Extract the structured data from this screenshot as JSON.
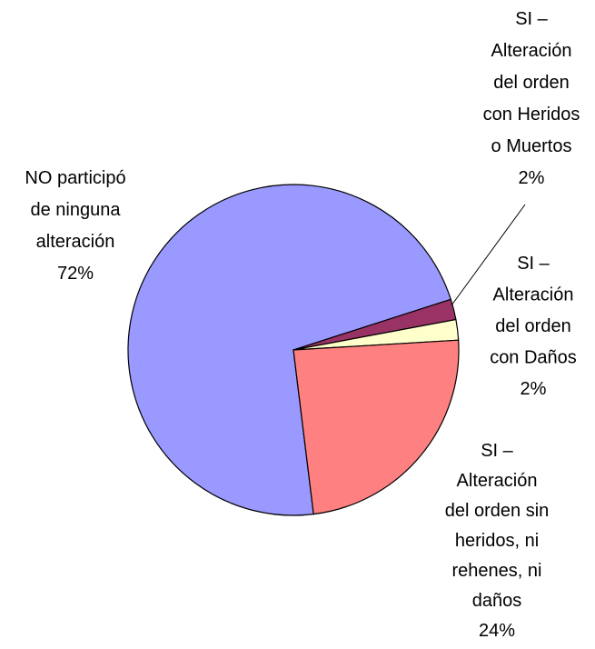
{
  "chart_data": {
    "type": "pie",
    "categories": [
      "NO participó\nde ninguna\nalteración",
      "SI –\nAlteración\ndel orden\ncon Heridos\no Muertos",
      "SI –\nAlteración\ndel orden\ncon Daños",
      "SI –\nAlteración\ndel orden sin\nheridos, ni\nrehenes, ni\ndaños"
    ],
    "values": [
      72,
      2,
      2,
      24
    ],
    "value_labels": [
      "72%",
      "2%",
      "2%",
      "24%"
    ],
    "colors": [
      "#9999ff",
      "#993366",
      "#ffffcc",
      "#ff8080"
    ]
  }
}
